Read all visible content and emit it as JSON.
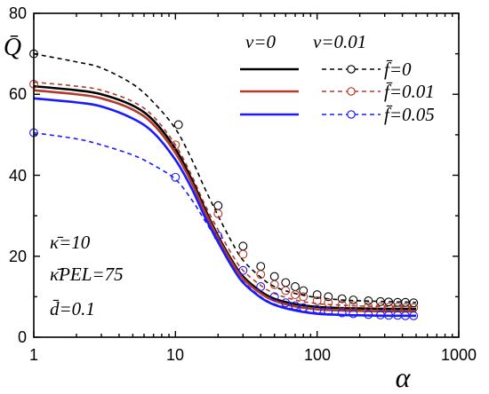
{
  "chart_data": {
    "type": "line",
    "xlabel": "α",
    "ylabel": "Q̄",
    "xscale": "log",
    "xlim": [
      1,
      1000
    ],
    "ylim": [
      0,
      80
    ],
    "xticks": [
      "1",
      "10",
      "100",
      "1000"
    ],
    "yticks": [
      "0",
      "20",
      "40",
      "60",
      "80"
    ],
    "grid": false,
    "legend_position": "top-right",
    "legend": {
      "col_headers": [
        "ν=0",
        "ν=0.01"
      ],
      "row_labels": [
        "f̄=0",
        "f̄=0.01",
        "f̄=0.05"
      ]
    },
    "annotations": [
      "κ̄=10",
      "κ̄PEL=75",
      "d̄=0.1"
    ],
    "series": [
      {
        "name": "ν=0, f̄=0",
        "color": "#000000",
        "style": "solid",
        "x": [
          1,
          2,
          3,
          5,
          7,
          10,
          13,
          16,
          20,
          25,
          30,
          40,
          50,
          70,
          100,
          150,
          200,
          300,
          500
        ],
        "y": [
          62.0,
          61.0,
          60.0,
          57.2,
          53.5,
          46.5,
          39.0,
          32.0,
          25.0,
          19.0,
          15.0,
          11.3,
          9.5,
          8.2,
          7.5,
          7.2,
          7.1,
          7.0,
          7.0
        ]
      },
      {
        "name": "ν=0, f̄=0.01",
        "color": "#b23a2a",
        "style": "solid",
        "x": [
          1,
          2,
          3,
          5,
          7,
          10,
          13,
          16,
          20,
          25,
          30,
          40,
          50,
          70,
          100,
          150,
          200,
          300,
          500
        ],
        "y": [
          61.0,
          60.0,
          59.0,
          56.2,
          52.5,
          45.5,
          38.2,
          31.3,
          24.5,
          18.5,
          14.5,
          10.8,
          9.0,
          7.6,
          6.9,
          6.6,
          6.5,
          6.4,
          6.4
        ]
      },
      {
        "name": "ν=0, f̄=0.05",
        "color": "#1a1aff",
        "style": "solid",
        "x": [
          1,
          2,
          3,
          5,
          7,
          10,
          13,
          16,
          20,
          25,
          30,
          40,
          50,
          70,
          100,
          150,
          200,
          300,
          500
        ],
        "y": [
          59.0,
          58.0,
          57.0,
          54.0,
          50.5,
          43.8,
          36.8,
          30.0,
          23.5,
          17.5,
          13.5,
          9.8,
          8.0,
          6.6,
          5.8,
          5.5,
          5.4,
          5.3,
          5.3
        ]
      },
      {
        "name": "ν=0.01, f̄=0",
        "color": "#000000",
        "style": "dashed",
        "x": [
          1,
          2,
          3,
          5,
          7,
          10,
          13,
          16,
          20,
          25,
          30,
          40,
          50,
          70,
          100,
          150,
          200,
          300,
          500
        ],
        "y": [
          70.0,
          68.0,
          66.5,
          62.5,
          58.0,
          51.5,
          44.0,
          37.0,
          30.0,
          23.5,
          19.0,
          14.8,
          12.5,
          10.8,
          9.8,
          9.2,
          9.0,
          8.8,
          8.6
        ],
        "markers": {
          "x": [
            1,
            10.5,
            20,
            30,
            40,
            50,
            60,
            70,
            80,
            100,
            120,
            150,
            180,
            230,
            280,
            320,
            370,
            420,
            480
          ],
          "y": [
            70,
            52.5,
            32.5,
            22.5,
            17.5,
            15,
            13.5,
            12.5,
            11.5,
            10.5,
            10,
            9.5,
            9.2,
            9,
            8.8,
            8.7,
            8.6,
            8.6,
            8.5
          ]
        }
      },
      {
        "name": "ν=0.01, f̄=0.01",
        "color": "#b23a2a",
        "style": "dashed",
        "x": [
          1,
          2,
          3,
          5,
          7,
          10,
          13,
          16,
          20,
          25,
          30,
          40,
          50,
          70,
          100,
          150,
          200,
          300,
          500
        ],
        "y": [
          63.0,
          62.0,
          61.0,
          58.2,
          54.5,
          47.5,
          40.0,
          33.0,
          26.5,
          20.5,
          16.5,
          12.8,
          10.8,
          9.2,
          8.3,
          7.9,
          7.7,
          7.6,
          7.5
        ],
        "markers": {
          "x": [
            1,
            10,
            20,
            30,
            40,
            50,
            60,
            70,
            80,
            100,
            120,
            150,
            180,
            230,
            280,
            320,
            370,
            420,
            480
          ],
          "y": [
            62.5,
            47.5,
            30.5,
            20.5,
            15.5,
            13,
            11.5,
            10.5,
            10,
            9,
            8.5,
            8,
            7.8,
            7.6,
            7.5,
            7.4,
            7.4,
            7.3,
            7.3
          ]
        }
      },
      {
        "name": "ν=0.01, f̄=0.05",
        "color": "#1a1aff",
        "style": "dashed",
        "x": [
          1,
          2,
          3,
          5,
          7,
          10,
          13,
          16,
          20,
          25,
          30,
          40,
          50,
          70,
          100,
          150,
          200,
          300,
          500
        ],
        "y": [
          50.5,
          49.0,
          47.5,
          45.0,
          42.5,
          39.0,
          34.0,
          29.0,
          23.5,
          17.5,
          13.8,
          10.0,
          8.2,
          6.8,
          6.0,
          5.6,
          5.5,
          5.4,
          5.3
        ],
        "markers": {
          "x": [
            1,
            10,
            20,
            30,
            40,
            50,
            60,
            70,
            80,
            100,
            120,
            150,
            180,
            230,
            280,
            320,
            370,
            420,
            480
          ],
          "y": [
            50.5,
            39.5,
            25,
            16.5,
            12.5,
            10,
            8.5,
            7.8,
            7.3,
            6.8,
            6.4,
            6,
            5.8,
            5.6,
            5.5,
            5.4,
            5.4,
            5.3,
            5.3
          ]
        }
      }
    ]
  }
}
